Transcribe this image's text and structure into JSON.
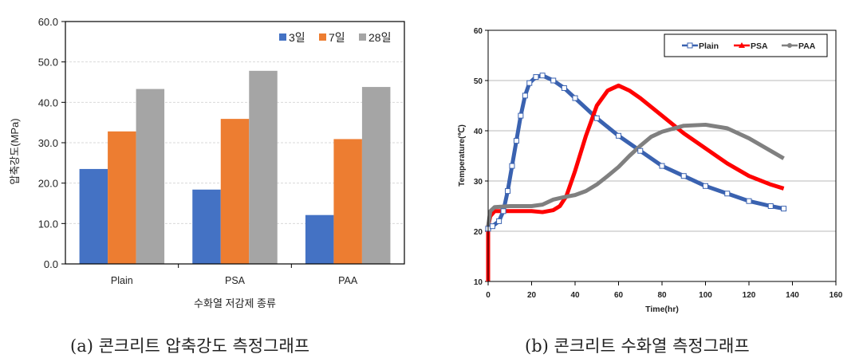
{
  "chart_data": [
    {
      "type": "bar",
      "title": "",
      "caption": "(a) 콘크리트 압축강도 측정그래프",
      "xlabel": "수화열 저감제 종류",
      "ylabel": "압축강도(MPa)",
      "ylim": [
        0,
        60
      ],
      "yticks": [
        "0.0",
        "10.0",
        "20.0",
        "30.0",
        "40.0",
        "50.0",
        "60.0"
      ],
      "categories": [
        "Plain",
        "PSA",
        "PAA"
      ],
      "legend_position": "top-right",
      "grid": true,
      "series": [
        {
          "name": "3일",
          "color": "#4472c4",
          "values": [
            23.5,
            18.4,
            12.1
          ]
        },
        {
          "name": "7일",
          "color": "#ed7d31",
          "values": [
            32.8,
            35.9,
            30.9
          ]
        },
        {
          "name": "28일",
          "color": "#a5a5a5",
          "values": [
            43.3,
            47.8,
            43.8
          ]
        }
      ]
    },
    {
      "type": "line",
      "caption": "(b) 콘크리트 수화열 측정그래프",
      "xlabel": "Time(hr)",
      "ylabel": "Temperature(℃)",
      "xlim": [
        0,
        160
      ],
      "ylim": [
        10,
        60
      ],
      "xticks": [
        "0",
        "20",
        "40",
        "60",
        "80",
        "100",
        "120",
        "140",
        "160"
      ],
      "yticks": [
        "10",
        "20",
        "30",
        "40",
        "50",
        "60"
      ],
      "legend_position": "top-right",
      "grid": true,
      "series": [
        {
          "name": "Plain",
          "color": "#3a62b0",
          "marker": "hollow-square",
          "points": [
            [
              0,
              20.5
            ],
            [
              2,
              21
            ],
            [
              5,
              22
            ],
            [
              7,
              24
            ],
            [
              9,
              28
            ],
            [
              11,
              33
            ],
            [
              13,
              38
            ],
            [
              15,
              43
            ],
            [
              17,
              47
            ],
            [
              19,
              49.5
            ],
            [
              22,
              50.7
            ],
            [
              25,
              51
            ],
            [
              30,
              50
            ],
            [
              35,
              48.5
            ],
            [
              40,
              46.5
            ],
            [
              50,
              42.5
            ],
            [
              60,
              39
            ],
            [
              70,
              36
            ],
            [
              80,
              33
            ],
            [
              90,
              31
            ],
            [
              100,
              29
            ],
            [
              110,
              27.5
            ],
            [
              120,
              26
            ],
            [
              130,
              25
            ],
            [
              136,
              24.5
            ]
          ]
        },
        {
          "name": "PSA",
          "color": "#ff0000",
          "marker": "triangle",
          "points": [
            [
              0,
              10
            ],
            [
              0,
              21
            ],
            [
              1,
              23
            ],
            [
              3,
              24
            ],
            [
              10,
              24
            ],
            [
              20,
              24
            ],
            [
              25,
              23.8
            ],
            [
              30,
              24.2
            ],
            [
              33,
              25
            ],
            [
              36,
              27
            ],
            [
              40,
              32
            ],
            [
              45,
              39
            ],
            [
              50,
              45
            ],
            [
              55,
              48
            ],
            [
              60,
              49
            ],
            [
              65,
              48
            ],
            [
              70,
              46.5
            ],
            [
              80,
              43
            ],
            [
              90,
              39.5
            ],
            [
              100,
              36.5
            ],
            [
              110,
              33.5
            ],
            [
              120,
              31
            ],
            [
              130,
              29.3
            ],
            [
              136,
              28.5
            ]
          ]
        },
        {
          "name": "PAA",
          "color": "#808080",
          "marker": "circle",
          "points": [
            [
              0,
              21
            ],
            [
              1,
              24
            ],
            [
              3,
              24.8
            ],
            [
              10,
              25
            ],
            [
              20,
              25
            ],
            [
              25,
              25.3
            ],
            [
              30,
              26.3
            ],
            [
              35,
              26.8
            ],
            [
              40,
              27.2
            ],
            [
              45,
              28
            ],
            [
              50,
              29.3
            ],
            [
              55,
              31
            ],
            [
              60,
              32.8
            ],
            [
              65,
              35
            ],
            [
              70,
              37
            ],
            [
              75,
              38.8
            ],
            [
              80,
              39.8
            ],
            [
              90,
              41
            ],
            [
              100,
              41.2
            ],
            [
              110,
              40.5
            ],
            [
              120,
              38.5
            ],
            [
              130,
              36
            ],
            [
              136,
              34.5
            ]
          ]
        }
      ]
    }
  ]
}
